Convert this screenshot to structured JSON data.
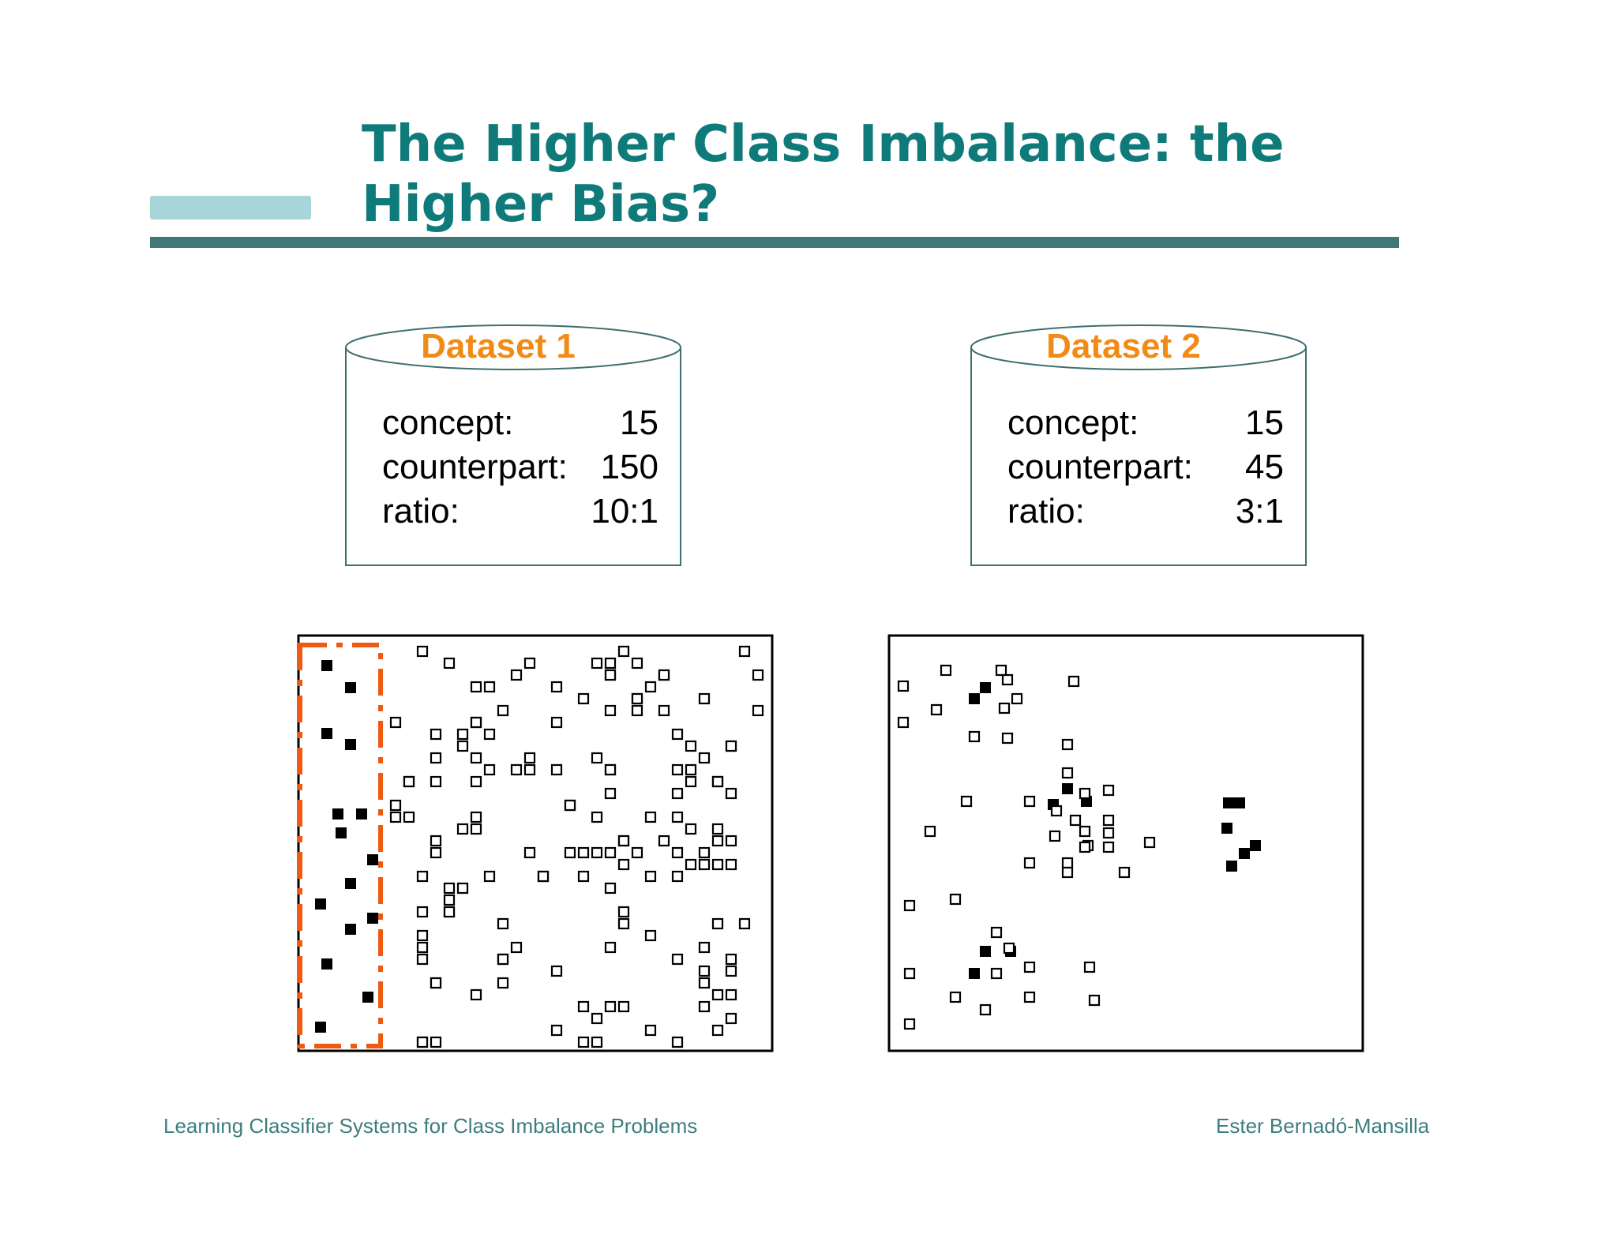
{
  "title": "The Higher Class Imbalance: the Higher Bias?",
  "datasets": [
    {
      "name": "Dataset 1",
      "concept_label": "concept:",
      "concept_value": "15",
      "counterpart_label": "counterpart:",
      "counterpart_value": "150",
      "ratio_label": "ratio:",
      "ratio_value": "10:1"
    },
    {
      "name": "Dataset 2",
      "concept_label": "concept:",
      "concept_value": "15",
      "counterpart_label": "counterpart:",
      "counterpart_value": "45",
      "ratio_label": "ratio:",
      "ratio_value": "3:1"
    }
  ],
  "footer": {
    "left": "Learning Classifier Systems for Class Imbalance Problems",
    "right": "Ester Bernadó-Mansilla"
  },
  "colors": {
    "title": "#0f7a7a",
    "accent_bar": "#a8d5d8",
    "rule": "#407777",
    "dataset_name": "#f28a16",
    "cylinder_stroke": "#3f6f6f",
    "highlight_box": "#ee5a12",
    "concept_point": "#000000",
    "counterpart_point": "#ffffff"
  },
  "legend_semantics": {
    "filled_square": "concept",
    "hollow_square": "counterpart"
  }
}
